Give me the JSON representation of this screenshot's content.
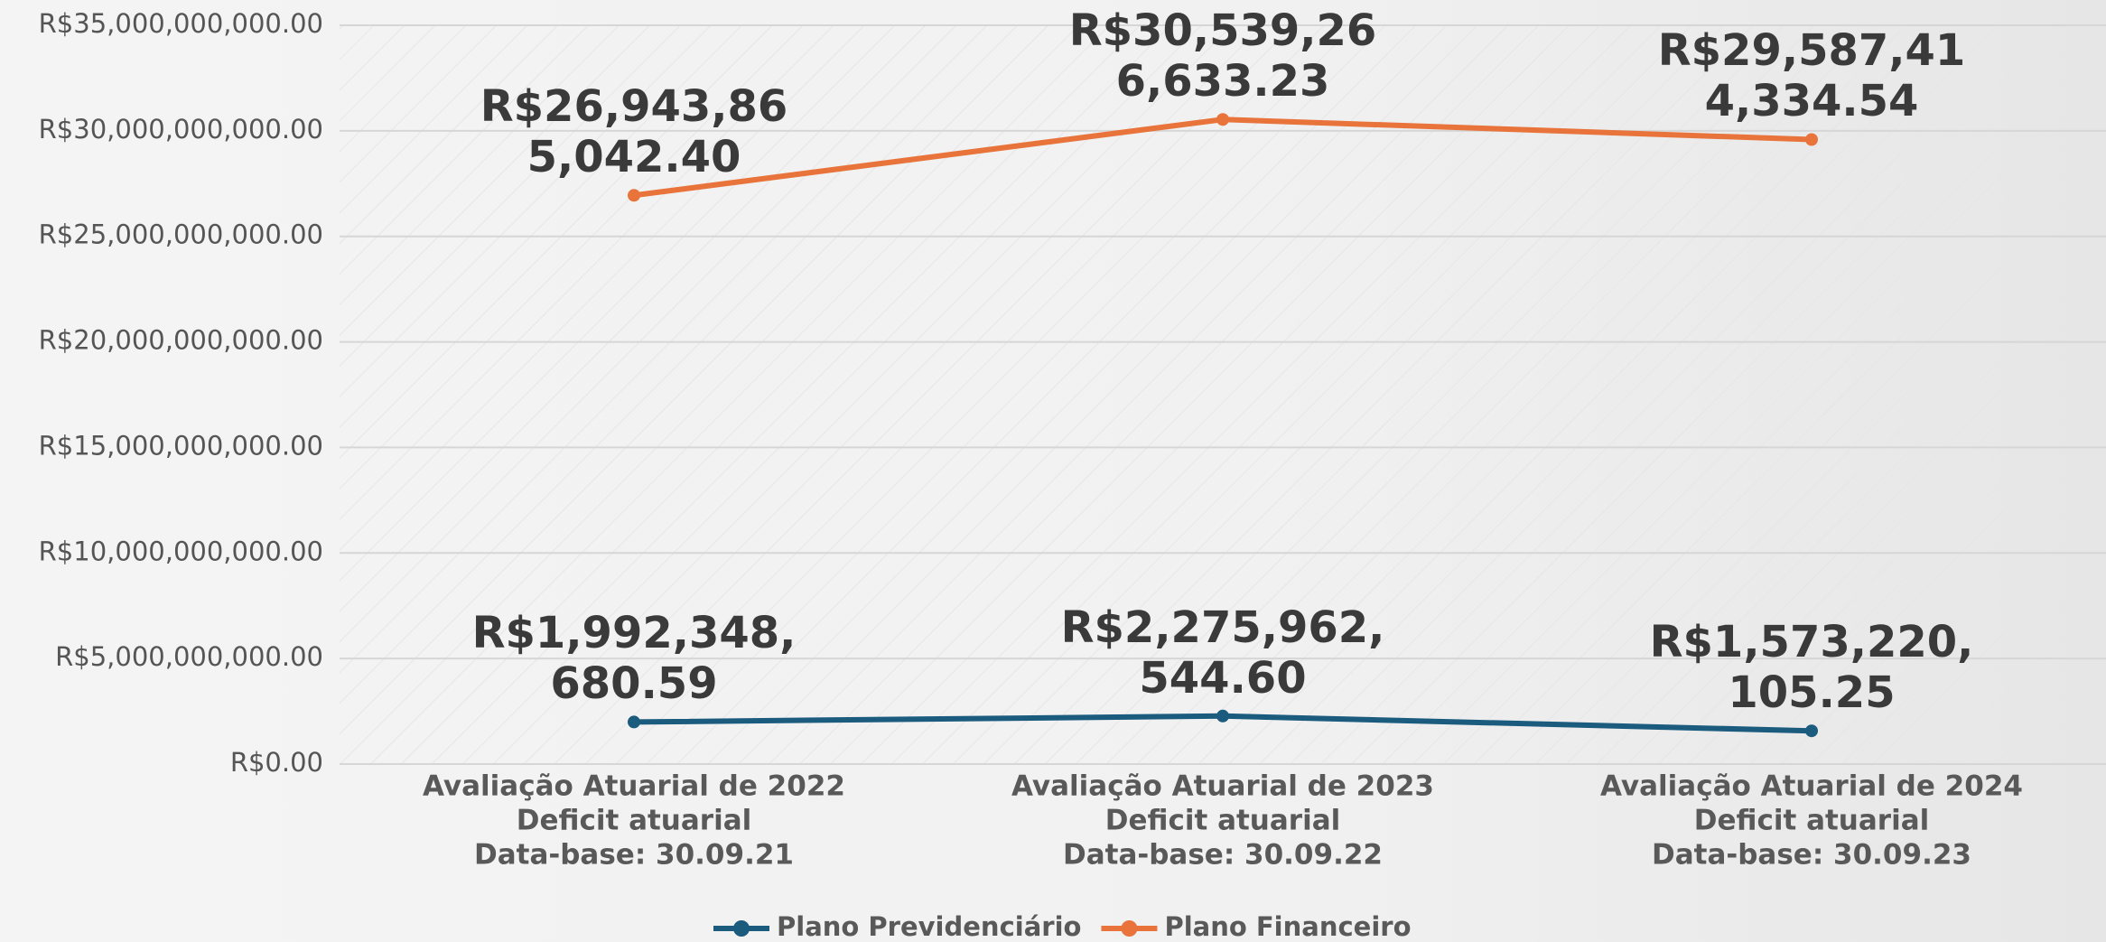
{
  "chart_data": {
    "type": "line",
    "categories": [
      [
        "Avaliação Atuarial de 2022",
        "Deficit atuarial",
        "Data-base: 30.09.21"
      ],
      [
        "Avaliação Atuarial de 2023",
        "Deficit atuarial",
        "Data-base: 30.09.22"
      ],
      [
        "Avaliação Atuarial de 2024",
        "Deficit atuarial",
        "Data-base: 30.09.23"
      ]
    ],
    "series": [
      {
        "name": "Plano Previdenciário",
        "color": "#1b5b7e",
        "values": [
          1992348680.59,
          2275962544.6,
          1573220105.25
        ],
        "value_labels": [
          "R$1,992,348,680.59",
          "R$2,275,962,544.60",
          "R$1,573,220,105.25"
        ]
      },
      {
        "name": "Plano Financeiro",
        "color": "#e8743b",
        "values": [
          26943865042.4,
          30539266633.23,
          29587414334.54
        ],
        "value_labels": [
          "R$26,943,865,042.40",
          "R$30,539,266,633.23",
          "R$29,587,414,334.54"
        ]
      }
    ],
    "ylim": [
      0,
      35000000000
    ],
    "yticks": [
      {
        "value": 0,
        "label": "R$0.00"
      },
      {
        "value": 5000000000,
        "label": "R$5,000,000,000.00"
      },
      {
        "value": 10000000000,
        "label": "R$10,000,000,000.00"
      },
      {
        "value": 15000000000,
        "label": "R$15,000,000,000.00"
      },
      {
        "value": 20000000000,
        "label": "R$20,000,000,000.00"
      },
      {
        "value": 25000000000,
        "label": "R$25,000,000,000.00"
      },
      {
        "value": 30000000000,
        "label": "R$30,000,000,000.00"
      },
      {
        "value": 35000000000,
        "label": "R$35,000,000,000.00"
      }
    ],
    "grid": true,
    "legend": "bottom"
  }
}
